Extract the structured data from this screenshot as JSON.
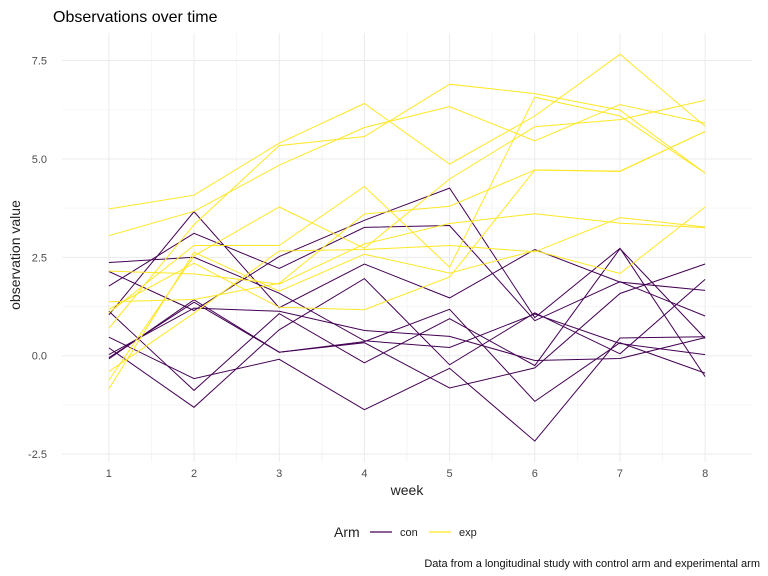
{
  "chart_data": {
    "type": "line",
    "title": "Observations over time",
    "xlabel": "week",
    "ylabel": "observation value",
    "caption": "Data from a longitudinal study with control arm and experimental arm",
    "x": [
      1,
      2,
      3,
      4,
      5,
      6,
      7,
      8
    ],
    "x_ticks": [
      "1",
      "2",
      "3",
      "4",
      "5",
      "6",
      "7",
      "8"
    ],
    "y_ticks": [
      "-2.5",
      "0.0",
      "2.5",
      "5.0",
      "7.5"
    ],
    "y_tick_values": [
      -2.5,
      0.0,
      2.5,
      5.0,
      7.5
    ],
    "xlim": [
      0.45,
      8.55
    ],
    "ylim": [
      -2.7,
      8.2
    ],
    "grid": true,
    "legend": {
      "title": "Arm",
      "position": "bottom",
      "entries": [
        {
          "label": "con",
          "color": "#440154"
        },
        {
          "label": "exp",
          "color": "#fde725"
        }
      ]
    },
    "series": [
      {
        "arm": "con",
        "values": [
          0.2,
          -1.31,
          0.66,
          1.96,
          -0.23,
          1.09,
          0.05,
          1.94
        ]
      },
      {
        "arm": "con",
        "values": [
          1.13,
          -0.88,
          1.07,
          -0.18,
          0.94,
          -0.25,
          2.72,
          0.44
        ]
      },
      {
        "arm": "con",
        "values": [
          1.77,
          3.11,
          2.22,
          3.26,
          3.31,
          0.89,
          1.88,
          1.01
        ]
      },
      {
        "arm": "con",
        "values": [
          1.04,
          3.66,
          1.22,
          2.33,
          1.47,
          2.7,
          1.87,
          1.66
        ]
      },
      {
        "arm": "con",
        "values": [
          0.47,
          -0.58,
          -0.09,
          -1.37,
          -0.32,
          -2.17,
          0.45,
          0.48
        ]
      },
      {
        "arm": "con",
        "values": [
          2.37,
          2.5,
          1.59,
          0.38,
          0.21,
          1.06,
          0.31,
          0.03
        ]
      },
      {
        "arm": "con",
        "values": [
          0.03,
          1.21,
          1.13,
          0.64,
          0.49,
          -0.12,
          -0.07,
          0.46
        ]
      },
      {
        "arm": "con",
        "values": [
          -0.08,
          1.42,
          0.09,
          0.36,
          1.18,
          -1.16,
          0.33,
          -0.44
        ]
      },
      {
        "arm": "con",
        "values": [
          2.14,
          1.15,
          2.52,
          3.44,
          4.26,
          0.97,
          2.73,
          -0.53
        ]
      },
      {
        "arm": "con",
        "values": [
          -0.05,
          1.36,
          0.09,
          0.33,
          -0.82,
          -0.31,
          1.58,
          2.33
        ]
      },
      {
        "arm": "exp",
        "values": [
          3.05,
          3.67,
          4.84,
          5.8,
          6.33,
          5.46,
          6.38,
          5.91
        ]
      },
      {
        "arm": "exp",
        "values": [
          -0.84,
          2.63,
          1.64,
          2.58,
          2.1,
          2.67,
          2.09,
          3.78
        ]
      },
      {
        "arm": "exp",
        "values": [
          2.15,
          2.08,
          1.82,
          2.84,
          3.36,
          3.61,
          3.37,
          3.25
        ]
      },
      {
        "arm": "exp",
        "values": [
          -0.62,
          2.54,
          3.78,
          2.73,
          4.49,
          5.82,
          6.0,
          6.49
        ]
      },
      {
        "arm": "exp",
        "values": [
          0.7,
          3.33,
          5.34,
          5.57,
          6.9,
          6.66,
          6.24,
          4.64
        ]
      },
      {
        "arm": "exp",
        "values": [
          3.73,
          4.08,
          5.4,
          6.41,
          4.87,
          6.09,
          7.66,
          5.83
        ]
      },
      {
        "arm": "exp",
        "values": [
          1.18,
          2.35,
          1.23,
          1.17,
          2.0,
          4.72,
          4.69,
          5.7
        ]
      },
      {
        "arm": "exp",
        "values": [
          1.37,
          1.43,
          1.84,
          3.6,
          3.8,
          4.72,
          4.68,
          5.7
        ]
      },
      {
        "arm": "exp",
        "values": [
          -0.4,
          1.08,
          2.66,
          2.7,
          2.8,
          2.64,
          3.51,
          3.27
        ]
      },
      {
        "arm": "exp",
        "values": [
          1.09,
          2.8,
          2.8,
          4.3,
          2.25,
          6.57,
          6.09,
          4.64
        ]
      }
    ]
  }
}
